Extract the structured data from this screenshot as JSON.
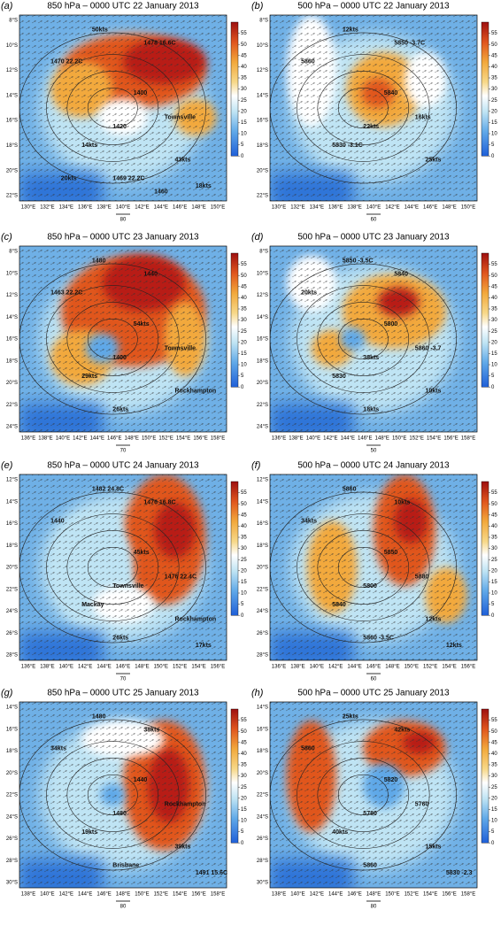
{
  "colorbar_ticks": [
    0,
    5,
    10,
    15,
    20,
    25,
    30,
    35,
    40,
    45,
    50,
    55
  ],
  "panels": [
    {
      "letter": "(a)",
      "title": "850 hPa – 0000 UTC 22 January 2013",
      "lat_ticks": [
        "8°S",
        "10°S",
        "12°S",
        "14°S",
        "16°S",
        "18°S",
        "20°S",
        "22°S"
      ],
      "lon_ticks": [
        "130°E",
        "132°E",
        "134°E",
        "136°E",
        "138°E",
        "140°E",
        "142°E",
        "144°E",
        "146°E",
        "148°E",
        "150°E"
      ],
      "ref_vector": "80",
      "annotations": [
        "50kts",
        "1478 16.6C",
        "1470 22.2C",
        "1400",
        "1420",
        "Townsville",
        "14kts",
        "43kts",
        "1469 22.2C",
        "18kts",
        "20kts",
        "1460"
      ]
    },
    {
      "letter": "(b)",
      "title": "500 hPa – 0000 UTC 22 January 2013",
      "lat_ticks": [
        "8°S",
        "10°S",
        "12°S",
        "14°S",
        "16°S",
        "18°S",
        "20°S",
        "22°S"
      ],
      "lon_ticks": [
        "130°E",
        "132°E",
        "134°E",
        "136°E",
        "138°E",
        "140°E",
        "142°E",
        "144°E",
        "146°E",
        "148°E",
        "150°E"
      ],
      "ref_vector": "60",
      "annotations": [
        "12kts",
        "5850 -3.7C",
        "5860",
        "5840",
        "22kts",
        "16kts",
        "5830 -3.1C",
        "25kts"
      ]
    },
    {
      "letter": "(c)",
      "title": "850 hPa – 0000 UTC 23 January 2013",
      "lat_ticks": [
        "8°S",
        "10°S",
        "12°S",
        "14°S",
        "16°S",
        "18°S",
        "20°S",
        "22°S",
        "24°S"
      ],
      "lon_ticks": [
        "136°E",
        "138°E",
        "140°E",
        "142°E",
        "144°E",
        "146°E",
        "148°E",
        "150°E",
        "152°E",
        "154°E",
        "156°E",
        "158°E"
      ],
      "ref_vector": "70",
      "annotations": [
        "1480",
        "1440",
        "1463 22.2C",
        "54kts",
        "1400",
        "Townsville",
        "29kts",
        "Rockhampton",
        "26kts"
      ]
    },
    {
      "letter": "(d)",
      "title": "500 hPa – 0000 UTC 23 January 2013",
      "lat_ticks": [
        "8°S",
        "10°S",
        "12°S",
        "14°S",
        "16°S",
        "18°S",
        "20°S",
        "22°S",
        "24°S"
      ],
      "lon_ticks": [
        "136°E",
        "138°E",
        "140°E",
        "142°E",
        "144°E",
        "146°E",
        "148°E",
        "150°E",
        "152°E",
        "154°E",
        "156°E",
        "158°E"
      ],
      "ref_vector": "50",
      "annotations": [
        "5850 -3.5C",
        "5840",
        "20kts",
        "5800",
        "38kts",
        "5860 -3.7",
        "5830",
        "10kts",
        "18kts"
      ]
    },
    {
      "letter": "(e)",
      "title": "850 hPa – 0000 UTC 24 January 2013",
      "lat_ticks": [
        "12°S",
        "14°S",
        "16°S",
        "18°S",
        "20°S",
        "22°S",
        "24°S",
        "26°S",
        "28°S"
      ],
      "lon_ticks": [
        "136°E",
        "138°E",
        "140°E",
        "142°E",
        "144°E",
        "146°E",
        "148°E",
        "150°E",
        "152°E",
        "154°E",
        "156°E"
      ],
      "ref_vector": "70",
      "annotations": [
        "1482 24.8C",
        "1476 16.8C",
        "1440",
        "45kts",
        "Townsville",
        "1476 22.4C",
        "Mackay",
        "Rockhampton",
        "26kts",
        "17kts"
      ]
    },
    {
      "letter": "(f)",
      "title": "500 hPa – 0000 UTC 24 January 2013",
      "lat_ticks": [
        "12°S",
        "14°S",
        "16°S",
        "18°S",
        "20°S",
        "22°S",
        "24°S",
        "26°S",
        "28°S"
      ],
      "lon_ticks": [
        "136°E",
        "138°E",
        "140°E",
        "142°E",
        "144°E",
        "146°E",
        "148°E",
        "150°E",
        "152°E",
        "154°E",
        "156°E"
      ],
      "ref_vector": "60",
      "annotations": [
        "5860",
        "10kts",
        "34kts",
        "5850",
        "5800",
        "5880",
        "5840",
        "12kts",
        "5860 -3.5C",
        "12kts"
      ]
    },
    {
      "letter": "(g)",
      "title": "850 hPa – 0000 UTC 25 January 2013",
      "lat_ticks": [
        "14°S",
        "16°S",
        "18°S",
        "20°S",
        "22°S",
        "24°S",
        "26°S",
        "28°S",
        "30°S"
      ],
      "lon_ticks": [
        "138°E",
        "140°E",
        "142°E",
        "144°E",
        "146°E",
        "148°E",
        "150°E",
        "152°E",
        "154°E",
        "156°E",
        "158°E"
      ],
      "ref_vector": "80",
      "annotations": [
        "1480",
        "38kts",
        "34kts",
        "1440",
        "1480",
        "Rockhampton",
        "19kts",
        "39kts",
        "Brisbane",
        "1491 15.6C"
      ]
    },
    {
      "letter": "(h)",
      "title": "500 hPa – 0000 UTC 25 January 2013",
      "lat_ticks": [
        "14°S",
        "16°S",
        "18°S",
        "20°S",
        "22°S",
        "24°S",
        "26°S",
        "28°S",
        "30°S"
      ],
      "lon_ticks": [
        "138°E",
        "140°E",
        "142°E",
        "144°E",
        "146°E",
        "148°E",
        "150°E",
        "152°E",
        "154°E",
        "156°E",
        "158°E"
      ],
      "ref_vector": "80",
      "annotations": [
        "25kts",
        "42kts",
        "5860",
        "5820",
        "5780",
        "5760",
        "40kts",
        "15kts",
        "5860",
        "5830 -2.3"
      ]
    }
  ]
}
